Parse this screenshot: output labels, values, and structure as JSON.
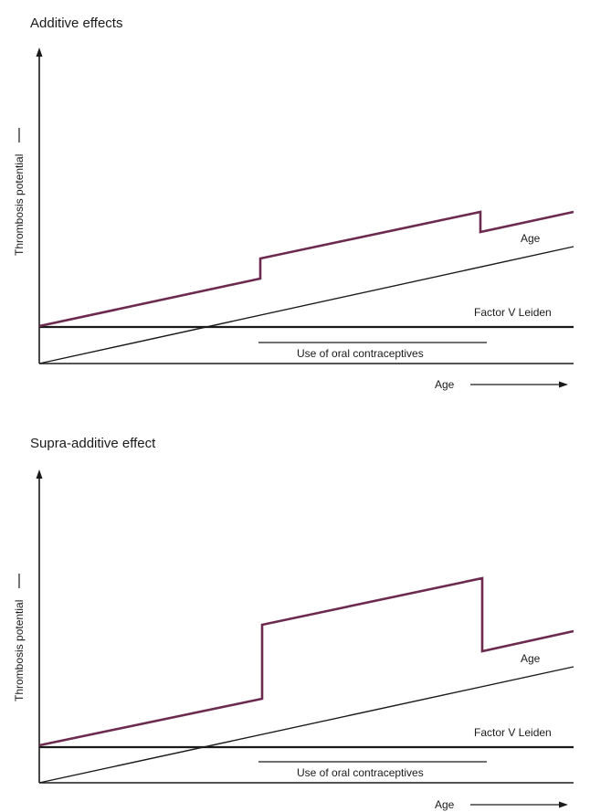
{
  "panels": [
    {
      "title": "Additive effects",
      "y_axis_label": "Thrombosis potential",
      "x_axis_label": "Age",
      "line_labels": {
        "age": "Age",
        "factor_v": "Factor V Leiden",
        "contraceptives": "Use of oral contraceptives"
      }
    },
    {
      "title": "Supra-additive effect",
      "y_axis_label": "Thrombosis potential",
      "x_axis_label": "Age",
      "line_labels": {
        "age": "Age",
        "factor_v": "Factor V Leiden",
        "contraceptives": "Use of oral contraceptives"
      }
    }
  ],
  "colors": {
    "combined_line": "#6d2a4f",
    "lines": "#1a1a1a"
  }
}
